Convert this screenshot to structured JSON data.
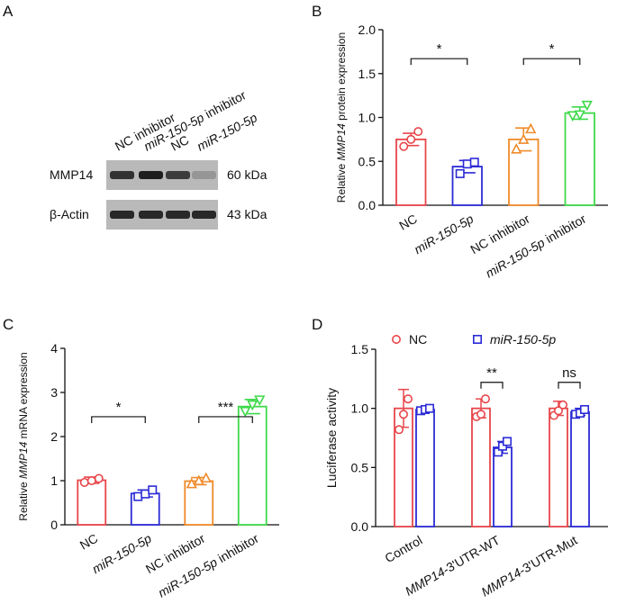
{
  "panels": {
    "A": {
      "letter": "A",
      "lane_labels": [
        {
          "text": "NC inhibitor",
          "italic": false
        },
        {
          "text": "miR-150-5p  inhibitor",
          "italic": true,
          "italic_part": "miR-150-5p",
          "rest": "  inhibitor"
        },
        {
          "text": "NC",
          "italic": false
        },
        {
          "text": "miR-150-5p",
          "italic": true
        }
      ],
      "rows": [
        {
          "protein": "MMP14",
          "size": "60 kDa",
          "intensity": [
            0.85,
            0.95,
            0.8,
            0.35
          ]
        },
        {
          "protein": "β-Actin",
          "size": "43 kDa",
          "intensity": [
            0.9,
            0.9,
            0.9,
            0.9
          ]
        }
      ]
    },
    "B": {
      "letter": "B"
    },
    "C": {
      "letter": "C"
    },
    "D": {
      "letter": "D"
    }
  },
  "chart_data": [
    {
      "panel": "B",
      "type": "bar",
      "ylabel_pre": "Relative ",
      "ylabel_ital": "MMP14",
      "ylabel_post": " protein expression",
      "ylim": [
        0,
        2.0
      ],
      "yticks": [
        "0.0",
        "0.5",
        "1.0",
        "1.5",
        "2.0"
      ],
      "ytick_values": [
        0,
        0.5,
        1.0,
        1.5,
        2.0
      ],
      "categories": [
        "NC",
        "miR-150-5p",
        "NC inhibitor",
        "miR-150-5p inhibitor"
      ],
      "category_italic": [
        false,
        true,
        false,
        "miR-150-5p"
      ],
      "values": [
        0.75,
        0.44,
        0.75,
        1.05
      ],
      "errors": [
        0.07,
        0.07,
        0.13,
        0.07
      ],
      "points": [
        [
          0.67,
          0.75,
          0.84
        ],
        [
          0.36,
          0.47,
          0.49
        ],
        [
          0.64,
          0.75,
          0.87
        ],
        [
          1.02,
          1.03,
          1.14
        ]
      ],
      "colors": [
        "#e8464b",
        "#2b2bd6",
        "#f08a2a",
        "#3fd94a"
      ],
      "markers": [
        "circle",
        "square",
        "triangle-up",
        "triangle-down"
      ],
      "significance": [
        {
          "from": 0,
          "to": 1,
          "label": "*",
          "y": 1.67
        },
        {
          "from": 2,
          "to": 3,
          "label": "*",
          "y": 1.67
        }
      ]
    },
    {
      "panel": "C",
      "type": "bar",
      "ylabel_pre": "Relative ",
      "ylabel_ital": "MMP14",
      "ylabel_post": " mRNA expression",
      "ylim": [
        0,
        4
      ],
      "yticks": [
        "0",
        "1",
        "2",
        "3",
        "4"
      ],
      "ytick_values": [
        0,
        1,
        2,
        3,
        4
      ],
      "categories": [
        "NC",
        "miR-150-5p",
        "NC inhibitor",
        "miR-150-5p inhibitor"
      ],
      "category_italic": [
        false,
        true,
        false,
        "miR-150-5p"
      ],
      "values": [
        1.01,
        0.71,
        0.99,
        2.68
      ],
      "errors": [
        0.07,
        0.08,
        0.08,
        0.16
      ],
      "points": [
        [
          0.96,
          1.0,
          1.05
        ],
        [
          0.64,
          0.7,
          0.79
        ],
        [
          0.93,
          1.0,
          1.06
        ],
        [
          2.57,
          2.72,
          2.83
        ]
      ],
      "colors": [
        "#e8464b",
        "#2b2bd6",
        "#f08a2a",
        "#3fd94a"
      ],
      "markers": [
        "circle",
        "square",
        "triangle-up",
        "triangle-down"
      ],
      "significance": [
        {
          "from": 0,
          "to": 1,
          "label": "*",
          "y": 2.45
        },
        {
          "from": 2,
          "to": 3,
          "label": "***",
          "y": 2.45
        }
      ]
    },
    {
      "panel": "D",
      "type": "bar",
      "ylabel": "Luciferase activity",
      "ylim": [
        0,
        1.5
      ],
      "yticks": [
        "0.0",
        "0.5",
        "1.0",
        "1.5"
      ],
      "ytick_values": [
        0,
        0.5,
        1.0,
        1.5
      ],
      "categories": [
        "Control",
        "MMP14-3'UTR-WT",
        "MMP14-3'UTR-Mut"
      ],
      "category_ital": [
        "",
        "MMP14",
        "MMP14"
      ],
      "category_rest": [
        "Control",
        "-3'UTR-WT",
        "-3'UTR-Mut"
      ],
      "series": [
        {
          "name": "NC",
          "values": [
            1.0,
            1.0,
            1.0
          ],
          "errors": [
            0.16,
            0.08,
            0.06
          ],
          "points": [
            [
              0.82,
              0.95,
              1.08
            ],
            [
              0.93,
              0.95,
              1.08
            ],
            [
              0.94,
              0.98,
              1.03
            ]
          ],
          "color": "#e8464b",
          "marker": "circle"
        },
        {
          "name": "miR-150-5p",
          "values": [
            0.99,
            0.67,
            0.97
          ],
          "errors": [
            0.02,
            0.05,
            0.03
          ],
          "points": [
            [
              0.98,
              0.99,
              1.0
            ],
            [
              0.63,
              0.68,
              0.72
            ],
            [
              0.95,
              0.96,
              0.99
            ]
          ],
          "color": "#2b2bd6",
          "marker": "square"
        }
      ],
      "legend_position": "top",
      "significance": [
        {
          "group": 1,
          "label": "**",
          "y": 1.22
        },
        {
          "group": 2,
          "label": "ns",
          "y": 1.22
        }
      ]
    }
  ]
}
